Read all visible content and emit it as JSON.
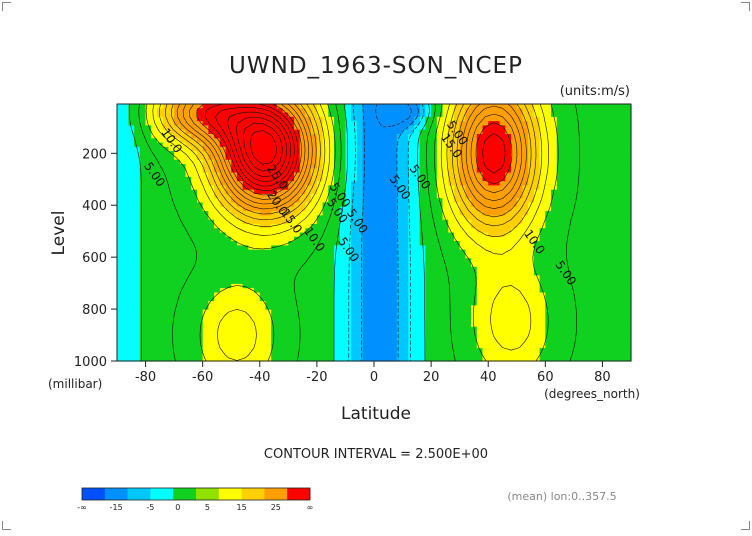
{
  "chart_data": {
    "type": "heatmap",
    "title": "UWND_1963-SON_NCEP",
    "units_label": "(units:m/s)",
    "xlabel": "Latitude",
    "x_units_label": "(degrees_north)",
    "ylabel": "Level",
    "y_units_label": "(millibar)",
    "xlim": [
      -90,
      90
    ],
    "ylim": [
      1000,
      10
    ],
    "x_ticks": [
      -80,
      -60,
      -40,
      -20,
      0,
      20,
      40,
      60,
      80
    ],
    "x_tick_labels": [
      "-80",
      "-60",
      "-40",
      "-20",
      "0",
      "20",
      "40",
      "60",
      "80"
    ],
    "y_ticks": [
      200,
      400,
      600,
      800,
      1000
    ],
    "y_tick_labels": [
      "200",
      "400",
      "600",
      "800",
      "1000"
    ],
    "contour_interval_text": "CONTOUR INTERVAL = 2.500E+00",
    "footer_text": "(mean) lon:0..357.5",
    "contour_labels": [
      {
        "text": "10.0",
        "lat": -72,
        "lev": 160
      },
      {
        "text": "5.00",
        "lat": -78,
        "lev": 290
      },
      {
        "text": "25.0",
        "lat": -35,
        "lev": 300
      },
      {
        "text": "20.0",
        "lat": -35,
        "lev": 400
      },
      {
        "text": "15.0",
        "lat": -30,
        "lev": 470
      },
      {
        "text": "10.0",
        "lat": -22,
        "lev": 540
      },
      {
        "text": "5.00",
        "lat": -13,
        "lev": 370
      },
      {
        "text": "5.00",
        "lat": -14,
        "lev": 430
      },
      {
        "text": "5.00",
        "lat": -10,
        "lev": 580
      },
      {
        "text": "5.00",
        "lat": -7,
        "lev": 470
      },
      {
        "text": "5.00",
        "lat": 8,
        "lev": 340
      },
      {
        "text": "5.00",
        "lat": 15,
        "lev": 300
      },
      {
        "text": "5.00",
        "lat": 28,
        "lev": 130
      },
      {
        "text": "15.0",
        "lat": 26,
        "lev": 180
      },
      {
        "text": "10.0",
        "lat": 55,
        "lev": 550
      },
      {
        "text": "5.00",
        "lat": 66,
        "lev": 670
      }
    ],
    "colorbar": {
      "ticks": [
        "-∞",
        "-15",
        "-5",
        "0",
        "5",
        "15",
        "25",
        "∞"
      ],
      "colors": [
        "#0050ff",
        "#0090ff",
        "#00c8ff",
        "#00ffff",
        "#10d020",
        "#90e000",
        "#ffff00",
        "#ffd000",
        "#ffa000",
        "#ff0000"
      ]
    },
    "jets": [
      {
        "lat": -38,
        "lev": 190,
        "max": 40,
        "hemisphere": "south"
      },
      {
        "lat": 42,
        "lev": 200,
        "max": 27.5,
        "hemisphere": "north"
      }
    ]
  }
}
